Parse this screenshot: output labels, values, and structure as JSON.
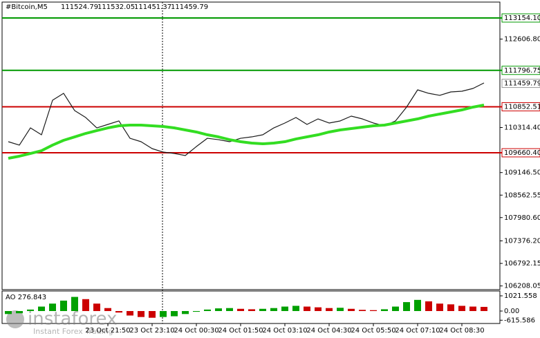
{
  "chart_data": {
    "type": "line",
    "title": "#Bitcoin,M5",
    "ohlc": [
      111524.79,
      111532.05,
      111451.37,
      111459.79
    ],
    "categories": [
      null,
      null,
      null,
      null,
      null,
      null,
      null,
      null,
      null,
      "23 Oct 21:50",
      null,
      null,
      null,
      "23 Oct 23:10",
      null,
      null,
      null,
      "24 Oct 00:30",
      null,
      null,
      null,
      "24 Oct 01:50",
      null,
      null,
      null,
      "24 Oct 03:10",
      null,
      null,
      null,
      "24 Oct 04:30",
      null,
      null,
      null,
      "24 Oct 05:50",
      null,
      null,
      null,
      "24 Oct 07:10",
      null,
      null,
      null,
      "24 Oct 08:30",
      null,
      null
    ],
    "series": [
      {
        "color": "#1a1a1a",
        "values": [
          109947,
          109858,
          110305,
          110126,
          111022,
          111201,
          110753,
          110574,
          110305,
          110395,
          110485,
          110036,
          109947,
          109768,
          109678,
          109642,
          109589,
          109821,
          110036,
          110000,
          109947,
          110036,
          110072,
          110126,
          110305,
          110431,
          110574,
          110395,
          110538,
          110431,
          110485,
          110610,
          110538,
          110431,
          110359,
          110485,
          110843,
          111291,
          111201,
          111148,
          111237,
          111255,
          111327,
          111470
        ]
      },
      {
        "color": "#33dd22",
        "values": [
          109517,
          109571,
          109642,
          109714,
          109858,
          109983,
          110072,
          110162,
          110234,
          110305,
          110359,
          110377,
          110377,
          110359,
          110341,
          110305,
          110252,
          110198,
          110126,
          110072,
          110000,
          109947,
          109911,
          109893,
          109911,
          109947,
          110018,
          110072,
          110126,
          110198,
          110252,
          110288,
          110323,
          110359,
          110377,
          110431,
          110485,
          110538,
          110610,
          110664,
          110717,
          110771,
          110843,
          110897
        ]
      }
    ],
    "ylim": [
      106095,
      113620
    ],
    "yticks": [
      {
        "value": 112606.8,
        "label": "112606.80"
      },
      {
        "value": 110314.4,
        "label": "110314.40"
      },
      {
        "value": 109146.5,
        "label": "109146.50"
      },
      108562.55,
      {
        "value": 107980.6,
        "label": "107980.60"
      },
      {
        "value": 107376.2,
        "label": "107376.20"
      },
      106792.15,
      106208.05
    ],
    "levels": [
      {
        "value": 113154.1,
        "label": "113154.10",
        "color": "#009900"
      },
      {
        "value": 111796.75,
        "color": "#009900"
      },
      {
        "value": 110852.51,
        "color": "#cc0000"
      },
      {
        "value": 109660.4,
        "label": "109660.40",
        "color": "#cc0000"
      }
    ],
    "current_price": 111459.79,
    "oscillator": {
      "label": "AO 276.843",
      "values": [
        -200,
        -150,
        100,
        300,
        500,
        700,
        950,
        800,
        500,
        200,
        -100,
        -300,
        -400,
        -450,
        -400,
        -350,
        -200,
        -50,
        100,
        180,
        200,
        150,
        120,
        150,
        200,
        300,
        350,
        300,
        250,
        200,
        220,
        150,
        80,
        60,
        120,
        300,
        600,
        750,
        650,
        500,
        450,
        350,
        300,
        280
      ],
      "ylim": [
        -928,
        1300
      ],
      "yticks": [
        1021.558,
        {
          "value": 0,
          "label": "0.00"
        },
        -615.586
      ],
      "up_color": "#00a000",
      "down_color": "#cc0000"
    },
    "watermark": {
      "brand": "instaforex",
      "tagline": "Instant Forex Trading"
    }
  }
}
